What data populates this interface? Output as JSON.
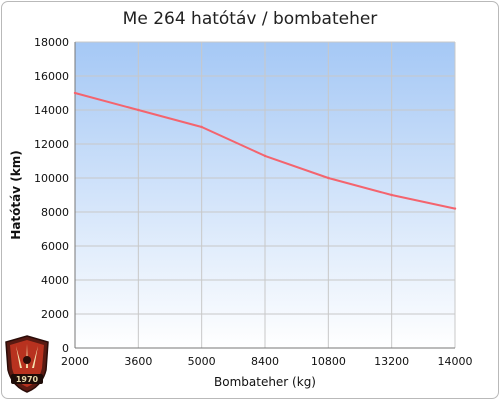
{
  "chart_data": {
    "type": "line",
    "title": "Me 264 hatótáv / bombateher",
    "xlabel": "Bombateher (kg)",
    "ylabel": "Hatótáv (km)",
    "categories": [
      "2000",
      "3600",
      "5000",
      "8400",
      "10800",
      "13200",
      "14000"
    ],
    "series": [
      {
        "values": [
          15000,
          14000,
          13000,
          11300,
          10000,
          9000,
          8200
        ]
      }
    ],
    "ylim": [
      0,
      18000
    ],
    "yticks": [
      0,
      2000,
      4000,
      6000,
      8000,
      10000,
      12000,
      14000,
      16000,
      18000
    ],
    "grid": true,
    "colors": {
      "line": "#f4646e",
      "plot_top": "#a5c8f5",
      "plot_bottom": "#ffffff",
      "grid": "#c8c8c8"
    }
  },
  "logo": {
    "text": "1970",
    "icon": "shield-emblem-icon"
  }
}
